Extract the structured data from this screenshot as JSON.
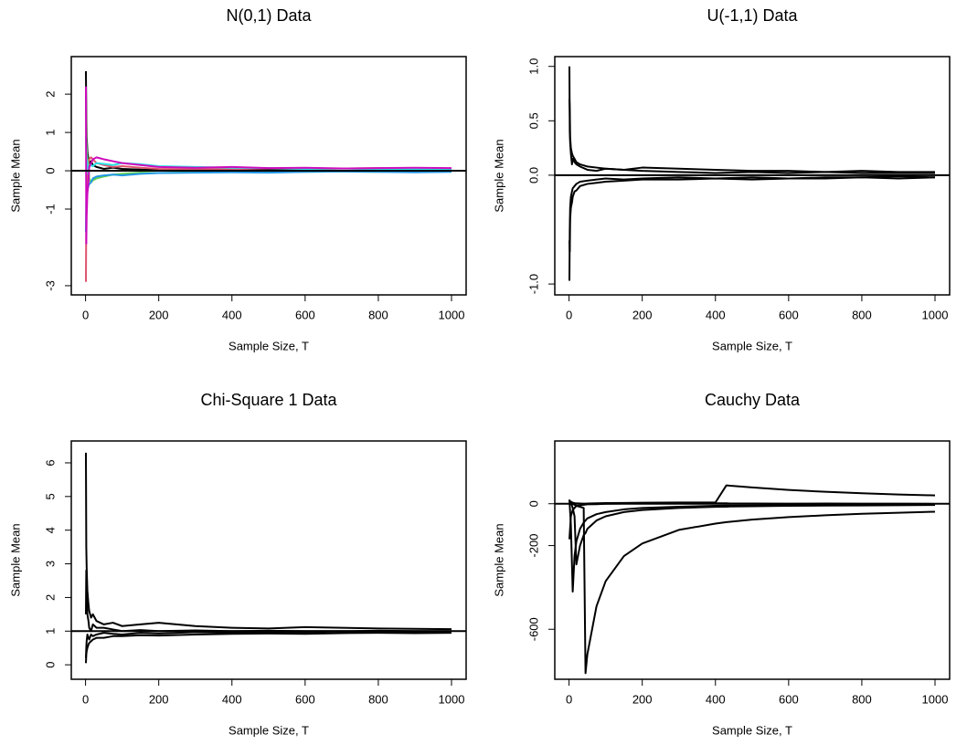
{
  "chart_data": [
    {
      "type": "line",
      "title": "N(0,1) Data",
      "x_label": "Sample Size, T",
      "y_label": "Sample Mean",
      "xlim": [
        -38.96,
        1039.96
      ],
      "ylim": [
        -3.24,
        2.98
      ],
      "xticks": [
        0,
        200,
        400,
        600,
        800,
        1000
      ],
      "yticks": [
        -3,
        -1,
        0,
        1,
        2
      ],
      "hline": 0,
      "x": [
        1,
        2,
        3,
        5,
        8,
        10,
        15,
        20,
        30,
        50,
        75,
        100,
        150,
        200,
        300,
        400,
        500,
        600,
        700,
        800,
        900,
        1000
      ],
      "series": [
        {
          "color": "#000000",
          "values": [
            2.6,
            1.5,
            0.9,
            0.5,
            0.3,
            0.2,
            0.25,
            0.15,
            0.1,
            0.05,
            0.08,
            0.05,
            0.03,
            0.02,
            0.01,
            0.0,
            0.02,
            0.01,
            0.0,
            0.01,
            0.0,
            0.0
          ]
        },
        {
          "color": "#DF536B",
          "values": [
            -2.9,
            -1.2,
            -0.6,
            -0.3,
            0.2,
            0.3,
            0.35,
            0.3,
            0.2,
            0.15,
            0.1,
            0.12,
            0.08,
            0.05,
            0.04,
            0.05,
            0.06,
            0.05,
            0.06,
            0.07,
            0.06,
            0.06
          ]
        },
        {
          "color": "#61D04F",
          "values": [
            1.8,
            1.0,
            0.6,
            0.3,
            0.1,
            -0.2,
            -0.3,
            -0.25,
            -0.2,
            -0.15,
            -0.1,
            -0.08,
            -0.05,
            -0.06,
            -0.04,
            -0.03,
            -0.02,
            -0.03,
            -0.02,
            -0.03,
            -0.02,
            -0.02
          ]
        },
        {
          "color": "#2297E6",
          "values": [
            -1.6,
            -0.8,
            -0.7,
            -0.5,
            -0.4,
            -0.35,
            -0.3,
            -0.2,
            -0.15,
            -0.12,
            -0.1,
            -0.12,
            -0.08,
            -0.06,
            -0.05,
            -0.04,
            -0.05,
            -0.03,
            -0.02,
            -0.03,
            -0.04,
            -0.03
          ]
        },
        {
          "color": "#28E2E5",
          "values": [
            0.9,
            0.5,
            0.3,
            0.2,
            -0.1,
            0.1,
            0.15,
            0.12,
            0.2,
            0.18,
            0.15,
            0.2,
            0.17,
            0.12,
            0.1,
            0.08,
            0.07,
            0.05,
            0.06,
            0.04,
            0.05,
            0.04
          ]
        },
        {
          "color": "#CD0BBC",
          "values": [
            2.2,
            -1.9,
            -1.2,
            -0.6,
            -0.3,
            0.1,
            0.2,
            0.3,
            0.35,
            0.3,
            0.25,
            0.2,
            0.15,
            0.1,
            0.08,
            0.1,
            0.07,
            0.08,
            0.06,
            0.07,
            0.08,
            0.07
          ]
        }
      ]
    },
    {
      "type": "line",
      "title": "U(-1,1) Data",
      "x_label": "Sample Size, T",
      "y_label": "Sample Mean",
      "xlim": [
        -38.96,
        1039.96
      ],
      "ylim": [
        -1.1,
        1.09
      ],
      "xticks": [
        0,
        200,
        400,
        600,
        800,
        1000
      ],
      "yticks": [
        {
          "value": -1,
          "label": "-1.0"
        },
        {
          "value": 0,
          "label": "0.0"
        },
        0.5,
        {
          "value": 1,
          "label": "1.0"
        }
      ],
      "hline": 0,
      "x": [
        1,
        2,
        3,
        5,
        8,
        10,
        15,
        20,
        30,
        50,
        75,
        100,
        150,
        200,
        300,
        400,
        500,
        600,
        700,
        800,
        900,
        1000
      ],
      "series": [
        {
          "color": "#000000",
          "values": [
            1.0,
            0.4,
            0.3,
            0.2,
            0.1,
            0.15,
            0.12,
            0.1,
            0.08,
            0.05,
            0.04,
            0.06,
            0.05,
            0.04,
            0.03,
            0.02,
            0.03,
            0.02,
            0.03,
            0.02,
            0.02,
            0.02
          ]
        },
        {
          "color": "#000000",
          "values": [
            -0.97,
            -0.5,
            -0.3,
            -0.2,
            -0.15,
            -0.12,
            -0.1,
            -0.08,
            -0.06,
            -0.05,
            -0.04,
            -0.03,
            -0.04,
            -0.03,
            -0.02,
            -0.03,
            -0.02,
            -0.03,
            -0.02,
            -0.02,
            -0.01,
            -0.02
          ]
        },
        {
          "color": "#000000",
          "values": [
            0.7,
            0.6,
            0.35,
            0.25,
            0.2,
            0.18,
            0.15,
            0.12,
            0.1,
            0.08,
            0.07,
            0.06,
            0.05,
            0.07,
            0.06,
            0.05,
            0.04,
            0.04,
            0.03,
            0.04,
            0.03,
            0.03
          ]
        },
        {
          "color": "#000000",
          "values": [
            -0.6,
            -0.7,
            -0.4,
            -0.3,
            -0.25,
            -0.2,
            -0.15,
            -0.14,
            -0.1,
            -0.08,
            -0.07,
            -0.06,
            -0.05,
            -0.04,
            -0.04,
            -0.03,
            -0.04,
            -0.03,
            -0.03,
            -0.02,
            -0.03,
            -0.02
          ]
        }
      ]
    },
    {
      "type": "line",
      "title": "Chi-Square 1 Data",
      "x_label": "Sample Size, T",
      "y_label": "Sample Mean",
      "xlim": [
        -38.96,
        1039.96
      ],
      "ylim": [
        -0.43,
        6.65
      ],
      "xticks": [
        0,
        200,
        400,
        600,
        800,
        1000
      ],
      "yticks": [
        0,
        1,
        2,
        3,
        4,
        5,
        6
      ],
      "hline": 1,
      "x": [
        1,
        2,
        3,
        5,
        8,
        10,
        15,
        20,
        30,
        50,
        75,
        100,
        150,
        200,
        300,
        400,
        500,
        600,
        700,
        800,
        900,
        1000
      ],
      "series": [
        {
          "color": "#000000",
          "values": [
            6.3,
            3.5,
            2.9,
            2.2,
            1.8,
            1.6,
            1.4,
            1.5,
            1.3,
            1.2,
            1.25,
            1.15,
            1.2,
            1.25,
            1.15,
            1.1,
            1.08,
            1.12,
            1.1,
            1.08,
            1.07,
            1.06
          ]
        },
        {
          "color": "#000000",
          "values": [
            0.05,
            0.3,
            0.4,
            0.5,
            0.6,
            0.65,
            0.7,
            0.75,
            0.8,
            0.8,
            0.85,
            0.85,
            0.88,
            0.87,
            0.9,
            0.92,
            0.93,
            0.92,
            0.94,
            0.95,
            0.94,
            0.95
          ]
        },
        {
          "color": "#000000",
          "values": [
            1.5,
            2.8,
            2.0,
            1.5,
            1.3,
            1.1,
            1.0,
            1.2,
            1.1,
            1.1,
            1.05,
            1.0,
            1.03,
            1.0,
            1.02,
            1.0,
            1.01,
            1.0,
            1.0,
            1.01,
            1.0,
            1.0
          ]
        },
        {
          "color": "#000000",
          "values": [
            0.2,
            0.5,
            0.7,
            0.9,
            0.8,
            0.75,
            0.9,
            0.85,
            0.9,
            0.95,
            0.92,
            0.9,
            0.95,
            0.93,
            0.97,
            0.96,
            0.98,
            0.97,
            0.99,
            0.98,
            0.97,
            0.98
          ]
        }
      ]
    },
    {
      "type": "line",
      "title": "Cauchy Data",
      "x_label": "Sample Size, T",
      "y_label": "Sample Mean",
      "xlim": [
        -38.96,
        1039.96
      ],
      "ylim": [
        -839,
        300
      ],
      "xticks": [
        0,
        200,
        400,
        600,
        800,
        1000
      ],
      "yticks": [
        -600,
        -200,
        0
      ],
      "hline": 0,
      "x": [
        1,
        5,
        10,
        15,
        20,
        30,
        40,
        45,
        50,
        75,
        100,
        150,
        200,
        300,
        400,
        430,
        440,
        500,
        600,
        700,
        800,
        900,
        1000
      ],
      "series": [
        {
          "color": "#000000",
          "values": [
            10,
            5,
            0,
            -5,
            -10,
            -15,
            -20,
            -810,
            -720,
            -490,
            -370,
            -250,
            -190,
            -125,
            -95,
            -88,
            -86,
            -76,
            -64,
            -55,
            -48,
            -43,
            -38
          ]
        },
        {
          "color": "#000000",
          "values": [
            20,
            -100,
            -420,
            -250,
            -180,
            -120,
            -90,
            -80,
            -70,
            -50,
            -40,
            -27,
            -20,
            -14,
            -10,
            -9,
            -9,
            -8,
            -7,
            -6,
            -5,
            -4,
            -4
          ]
        },
        {
          "color": "#000000",
          "values": [
            -5,
            10,
            5,
            3,
            2,
            1,
            0,
            0,
            1,
            2,
            3,
            4,
            5,
            6,
            6,
            88,
            86,
            78,
            66,
            57,
            50,
            44,
            40
          ]
        },
        {
          "color": "#000000",
          "values": [
            15,
            8,
            -20,
            -60,
            -290,
            -200,
            -150,
            -140,
            -120,
            -80,
            -60,
            -40,
            -30,
            -20,
            -15,
            -14,
            -13,
            -12,
            -10,
            -9,
            -8,
            -7,
            -6
          ]
        },
        {
          "color": "#000000",
          "values": [
            -170,
            -60,
            -30,
            -20,
            -10,
            -8,
            -5,
            -4,
            -3,
            -2,
            0,
            1,
            2,
            3,
            2,
            2,
            1,
            1,
            0,
            1,
            0,
            0,
            -1
          ]
        }
      ]
    }
  ]
}
